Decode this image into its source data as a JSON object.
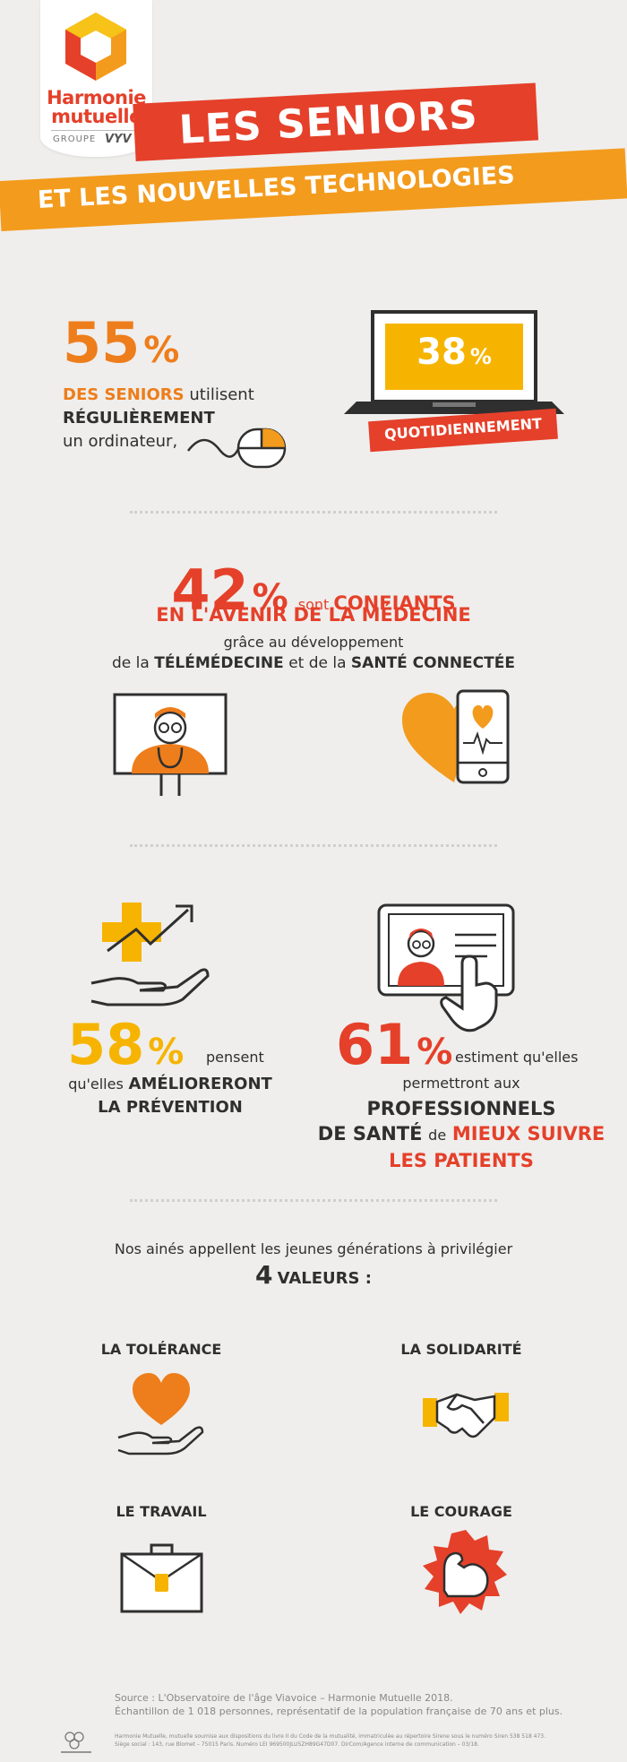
{
  "brand": {
    "name_line1": "Harmonie",
    "name_line2": "mutuelle",
    "group": "GROUPE",
    "group_brand": "VYV"
  },
  "title": {
    "line1": "LES SENIORS",
    "line2": "ET LES NOUVELLES TECHNOLOGIES"
  },
  "stat_computer": {
    "percent": "55",
    "percent_sign": "%",
    "seniors": "DES SENIORS",
    "uses": "utilisent",
    "regularly": "RÉGULIÈREMENT",
    "computer": "un ordinateur,"
  },
  "stat_daily": {
    "percent": "38",
    "percent_sign": "%",
    "label": "QUOTIDIENNEMENT"
  },
  "stat_medicine": {
    "percent": "42",
    "percent_sign": "%",
    "are": "sont",
    "confident": "CONFIANTS",
    "future": "EN L'AVENIR DE LA MÉDECINE",
    "thanks": "grâce au développement",
    "of_the": "de la",
    "telemedicine": "TÉLÉMÉDECINE",
    "and_of": "et de la",
    "connected_health": "SANTÉ CONNECTÉE"
  },
  "stat_prevention": {
    "percent": "58",
    "percent_sign": "%",
    "think": "pensent",
    "that": "qu'elles",
    "improve": "AMÉLIORERONT",
    "prevention": "LA PRÉVENTION"
  },
  "stat_followup": {
    "percent": "61",
    "percent_sign": "%",
    "estimate": "estiment qu'elles",
    "allow": "permettront aux",
    "professionals": "PROFESSIONNELS",
    "health": "DE SANTÉ",
    "of": "de",
    "better_follow": "MIEUX SUIVRE",
    "patients": "LES PATIENTS"
  },
  "values_intro": {
    "line1": "Nos ainés appellent les jeunes générations à privilégier",
    "count": "4",
    "values_label": "VALEURS :"
  },
  "values": [
    {
      "label": "LA TOLÉRANCE"
    },
    {
      "label": "LA SOLIDARITÉ"
    },
    {
      "label": "LE TRAVAIL"
    },
    {
      "label": "LE COURAGE"
    }
  ],
  "source": {
    "line1": "Source : L'Observatoire de l'âge Viavoice – Harmonie Mutuelle 2018.",
    "line2": "Échantillon de 1 018 personnes, représentatif de la population française de 70 ans et plus."
  },
  "legal": {
    "line1": "Harmonie Mutuelle, mutuelle soumise aux dispositions du livre II du Code de la mutualité, immatriculée au répertoire Sirene sous le numéro Siren 538 518 473.",
    "line2": "Siège social : 143, rue Blomet – 75015 Paris. Numéro LEI 969500JLU5ZH89G47D07. DirCom/Agence interne de communication – 03/18."
  },
  "colors": {
    "orange": "#ee7d1b",
    "red": "#e5402a",
    "yellow": "#f6b400",
    "background": "#efeeec"
  }
}
